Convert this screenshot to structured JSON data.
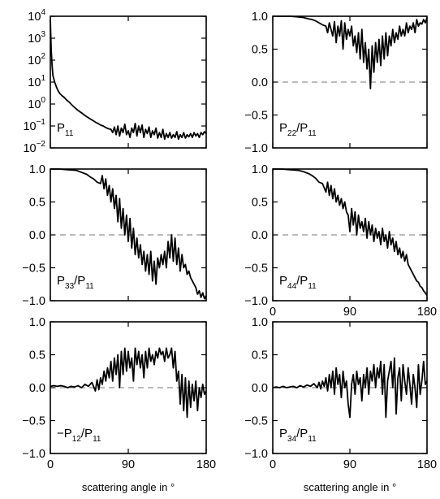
{
  "chart_data": [
    {
      "type": "line",
      "id": "P11",
      "panel_label": "P",
      "panel_label_parts": [
        "P",
        "11"
      ],
      "y_scale": "log",
      "ylim": [
        0.01,
        10000
      ],
      "yticks": [
        0.01,
        0.1,
        1,
        10,
        100,
        1000,
        10000
      ],
      "ytick_labels": [
        [
          "10",
          "−2"
        ],
        [
          "10",
          "−1"
        ],
        [
          "10",
          "0"
        ],
        [
          "10",
          "1"
        ],
        [
          "10",
          "2"
        ],
        [
          "10",
          "3"
        ],
        [
          "10",
          "4"
        ]
      ],
      "xlim": [
        0,
        180
      ],
      "xticks": [
        0,
        90,
        180
      ],
      "xtick_labels": [
        "",
        "",
        ""
      ],
      "xlabel": "",
      "zero_line": false,
      "x": [
        0,
        1,
        2,
        3,
        5,
        7,
        9,
        11,
        13,
        16,
        19,
        22,
        25,
        28,
        31,
        34,
        37,
        40,
        43,
        46,
        49,
        52,
        55,
        58,
        61,
        64,
        67,
        70,
        72,
        74,
        76,
        78,
        80,
        82,
        84,
        86,
        88,
        90,
        92,
        94,
        96,
        98,
        100,
        102,
        104,
        106,
        108,
        110,
        112,
        114,
        116,
        118,
        120,
        122,
        124,
        126,
        128,
        130,
        132,
        134,
        136,
        138,
        140,
        142,
        144,
        146,
        148,
        150,
        152,
        154,
        156,
        158,
        160,
        162,
        164,
        166,
        168,
        170,
        172,
        174,
        176,
        178,
        180
      ],
      "y": [
        7000,
        300,
        60,
        20,
        10,
        6,
        4,
        3,
        2.5,
        2,
        1.5,
        1.2,
        0.9,
        0.7,
        0.55,
        0.45,
        0.37,
        0.3,
        0.25,
        0.21,
        0.18,
        0.15,
        0.13,
        0.11,
        0.1,
        0.085,
        0.075,
        0.07,
        0.05,
        0.09,
        0.04,
        0.1,
        0.035,
        0.08,
        0.05,
        0.12,
        0.04,
        0.06,
        0.03,
        0.08,
        0.05,
        0.13,
        0.035,
        0.1,
        0.05,
        0.11,
        0.03,
        0.07,
        0.045,
        0.09,
        0.03,
        0.06,
        0.04,
        0.08,
        0.028,
        0.05,
        0.03,
        0.07,
        0.025,
        0.045,
        0.03,
        0.05,
        0.028,
        0.04,
        0.03,
        0.055,
        0.025,
        0.04,
        0.03,
        0.05,
        0.028,
        0.04,
        0.032,
        0.045,
        0.03,
        0.05,
        0.035,
        0.045,
        0.03,
        0.05,
        0.04,
        0.055,
        0.045
      ]
    },
    {
      "type": "line",
      "id": "P22/P11",
      "panel_label_parts": [
        "P",
        "22",
        "/P",
        "11"
      ],
      "y_scale": "linear",
      "ylim": [
        -1,
        1
      ],
      "yticks": [
        -1,
        -0.5,
        0,
        0.5,
        1
      ],
      "ytick_labels": [
        "−1.0",
        "−0.5",
        "0.0",
        "0.5",
        "1.0"
      ],
      "xlim": [
        0,
        180
      ],
      "xticks": [
        0,
        90,
        180
      ],
      "xtick_labels": [
        "",
        "",
        ""
      ],
      "xlabel": "",
      "zero_line": true,
      "x": [
        0,
        10,
        20,
        30,
        36,
        42,
        46,
        50,
        54,
        58,
        62,
        64,
        66,
        68,
        70,
        72,
        74,
        76,
        78,
        80,
        82,
        84,
        86,
        88,
        90,
        92,
        94,
        96,
        98,
        100,
        102,
        104,
        106,
        108,
        110,
        112,
        114,
        116,
        118,
        120,
        122,
        124,
        126,
        128,
        130,
        132,
        134,
        136,
        138,
        140,
        142,
        144,
        146,
        148,
        150,
        152,
        154,
        156,
        158,
        160,
        162,
        164,
        166,
        168,
        170,
        172,
        174,
        176,
        178,
        180
      ],
      "y": [
        1.0,
        1.0,
        1.0,
        0.99,
        0.98,
        0.96,
        0.95,
        0.93,
        0.9,
        0.87,
        0.85,
        0.75,
        0.9,
        0.8,
        0.7,
        0.92,
        0.6,
        0.85,
        0.7,
        0.93,
        0.5,
        0.9,
        0.65,
        0.8,
        0.7,
        0.85,
        0.55,
        0.7,
        0.45,
        0.75,
        0.35,
        0.8,
        0.3,
        0.6,
        0.2,
        0.5,
        -0.1,
        0.55,
        0.15,
        0.6,
        0.3,
        0.65,
        0.25,
        0.7,
        0.35,
        0.75,
        0.4,
        0.7,
        0.55,
        0.8,
        0.6,
        0.75,
        0.65,
        0.85,
        0.7,
        0.8,
        0.7,
        0.9,
        0.75,
        0.85,
        0.8,
        0.9,
        0.75,
        0.95,
        0.85,
        0.9,
        0.88,
        0.95,
        0.9,
        0.98
      ]
    },
    {
      "type": "line",
      "id": "P33/P11",
      "panel_label_parts": [
        "P",
        "33",
        "/P",
        "11"
      ],
      "y_scale": "linear",
      "ylim": [
        -1,
        1
      ],
      "yticks": [
        -1,
        -0.5,
        0,
        0.5,
        1
      ],
      "ytick_labels": [
        "−1.0",
        "−0.5",
        "0.0",
        "0.5",
        "1.0"
      ],
      "xlim": [
        0,
        180
      ],
      "xticks": [
        0,
        90,
        180
      ],
      "xtick_labels": [
        "",
        "",
        ""
      ],
      "xlabel": "",
      "zero_line": true,
      "x": [
        0,
        10,
        20,
        30,
        36,
        42,
        46,
        50,
        54,
        58,
        60,
        62,
        64,
        66,
        68,
        70,
        72,
        74,
        76,
        78,
        80,
        82,
        84,
        86,
        88,
        90,
        92,
        94,
        96,
        98,
        100,
        102,
        104,
        106,
        108,
        110,
        112,
        114,
        116,
        118,
        120,
        122,
        124,
        126,
        128,
        130,
        132,
        134,
        136,
        138,
        140,
        142,
        144,
        146,
        148,
        150,
        152,
        154,
        156,
        158,
        160,
        162,
        164,
        166,
        168,
        170,
        172,
        174,
        176,
        178,
        180
      ],
      "y": [
        1.0,
        1.0,
        0.99,
        0.98,
        0.95,
        0.92,
        0.88,
        0.85,
        0.8,
        0.78,
        0.9,
        0.7,
        0.85,
        0.6,
        0.75,
        0.5,
        0.7,
        0.4,
        0.6,
        0.2,
        0.55,
        0.1,
        0.4,
        0.0,
        0.3,
        -0.1,
        0.25,
        -0.2,
        0.1,
        -0.3,
        -0.05,
        -0.35,
        -0.15,
        -0.45,
        -0.25,
        -0.55,
        -0.3,
        -0.6,
        -0.25,
        -0.7,
        -0.4,
        -0.75,
        -0.35,
        -0.5,
        -0.3,
        -0.45,
        -0.25,
        -0.5,
        -0.1,
        -0.35,
        0.0,
        -0.4,
        -0.05,
        -0.45,
        -0.2,
        -0.55,
        -0.3,
        -0.5,
        -0.45,
        -0.6,
        -0.55,
        -0.65,
        -0.7,
        -0.75,
        -0.8,
        -0.9,
        -0.85,
        -0.95,
        -0.88,
        -0.97,
        -0.92
      ]
    },
    {
      "type": "line",
      "id": "P44/P11",
      "panel_label_parts": [
        "P",
        "44",
        "/P",
        "11"
      ],
      "y_scale": "linear",
      "ylim": [
        -1,
        1
      ],
      "yticks": [
        -1,
        -0.5,
        0,
        0.5,
        1
      ],
      "ytick_labels": [
        "−1.0",
        "−0.5",
        "0.0",
        "0.5",
        "1.0"
      ],
      "xlim": [
        0,
        180
      ],
      "xticks": [
        0,
        90,
        180
      ],
      "xtick_labels": [
        "0",
        "90",
        "180"
      ],
      "xlabel": "",
      "zero_line": true,
      "x": [
        0,
        10,
        20,
        30,
        36,
        42,
        46,
        50,
        54,
        58,
        62,
        64,
        66,
        68,
        70,
        72,
        74,
        76,
        78,
        80,
        82,
        84,
        86,
        88,
        90,
        92,
        94,
        96,
        98,
        100,
        102,
        104,
        106,
        108,
        110,
        112,
        114,
        116,
        118,
        120,
        122,
        124,
        126,
        128,
        130,
        132,
        134,
        136,
        138,
        140,
        142,
        144,
        146,
        148,
        150,
        152,
        154,
        156,
        158,
        160,
        162,
        164,
        166,
        168,
        170,
        172,
        174,
        176,
        178,
        180
      ],
      "y": [
        1.0,
        1.0,
        0.99,
        0.98,
        0.96,
        0.93,
        0.9,
        0.86,
        0.8,
        0.78,
        0.65,
        0.8,
        0.6,
        0.75,
        0.55,
        0.7,
        0.5,
        0.6,
        0.45,
        0.55,
        0.4,
        0.5,
        0.35,
        0.3,
        0.05,
        0.4,
        0.15,
        0.35,
        0.0,
        0.3,
        0.1,
        0.2,
        0.05,
        0.25,
        -0.05,
        0.2,
        0.0,
        0.15,
        -0.1,
        0.1,
        -0.05,
        0.05,
        -0.15,
        0.1,
        -0.1,
        0.0,
        -0.2,
        0.05,
        -0.15,
        -0.05,
        -0.25,
        -0.1,
        -0.3,
        -0.2,
        -0.35,
        -0.25,
        -0.4,
        -0.3,
        -0.45,
        -0.5,
        -0.55,
        -0.6,
        -0.65,
        -0.7,
        -0.72,
        -0.78,
        -0.8,
        -0.85,
        -0.88,
        -0.92
      ]
    },
    {
      "type": "line",
      "id": "-P12/P11",
      "panel_label_parts": [
        "−P",
        "12",
        "/P",
        "11"
      ],
      "y_scale": "linear",
      "ylim": [
        -1,
        1
      ],
      "yticks": [
        -1,
        -0.5,
        0,
        0.5,
        1
      ],
      "ytick_labels": [
        "−1.0",
        "−0.5",
        "0.0",
        "0.5",
        "1.0"
      ],
      "xlim": [
        0,
        180
      ],
      "xticks": [
        0,
        90,
        180
      ],
      "xtick_labels": [
        "0",
        "90",
        "180"
      ],
      "xlabel": "scattering angle in °",
      "zero_line": true,
      "x": [
        0,
        4,
        8,
        12,
        16,
        20,
        24,
        28,
        32,
        36,
        40,
        44,
        48,
        52,
        54,
        56,
        58,
        60,
        62,
        64,
        66,
        68,
        70,
        72,
        74,
        76,
        78,
        80,
        82,
        84,
        86,
        88,
        90,
        92,
        94,
        96,
        98,
        100,
        102,
        104,
        106,
        108,
        110,
        112,
        114,
        116,
        118,
        120,
        122,
        124,
        126,
        128,
        130,
        132,
        134,
        136,
        138,
        140,
        142,
        144,
        146,
        148,
        150,
        152,
        154,
        156,
        158,
        160,
        162,
        164,
        166,
        168,
        170,
        172,
        174,
        176,
        178,
        180
      ],
      "y": [
        0.02,
        0.03,
        0.02,
        0.03,
        0.02,
        0.0,
        0.02,
        0.01,
        0.03,
        0.0,
        0.05,
        0.02,
        0.08,
        -0.05,
        0.12,
        -0.03,
        0.15,
        0.05,
        0.25,
        0.1,
        0.3,
        0.15,
        0.4,
        0.1,
        0.45,
        0.2,
        0.5,
        0.0,
        0.55,
        0.2,
        0.6,
        0.25,
        0.55,
        0.3,
        0.45,
        0.1,
        0.6,
        0.35,
        0.55,
        0.3,
        0.5,
        0.15,
        0.55,
        0.3,
        0.6,
        0.4,
        0.5,
        0.35,
        0.55,
        0.45,
        0.6,
        0.5,
        0.55,
        0.4,
        0.6,
        0.45,
        0.5,
        0.6,
        0.3,
        0.55,
        0.1,
        0.25,
        -0.25,
        0.2,
        -0.35,
        0.15,
        -0.45,
        0.1,
        -0.3,
        0.05,
        -0.2,
        0.1,
        -0.35,
        0.0,
        -0.15,
        0.05,
        -0.1,
        -0.05
      ]
    },
    {
      "type": "line",
      "id": "P34/P11",
      "panel_label_parts": [
        "P",
        "34",
        "/P",
        "11"
      ],
      "y_scale": "linear",
      "ylim": [
        -1,
        1
      ],
      "yticks": [
        -1,
        -0.5,
        0,
        0.5,
        1
      ],
      "ytick_labels": [
        "−1.0",
        "−0.5",
        "0.0",
        "0.5",
        "1.0"
      ],
      "xlim": [
        0,
        180
      ],
      "xticks": [
        0,
        90,
        180
      ],
      "xtick_labels": [
        "0",
        "90",
        "180"
      ],
      "xlabel": "scattering angle in °",
      "zero_line": true,
      "x": [
        0,
        4,
        8,
        12,
        16,
        20,
        24,
        28,
        32,
        36,
        40,
        44,
        48,
        52,
        54,
        56,
        58,
        60,
        62,
        64,
        66,
        68,
        70,
        72,
        74,
        76,
        78,
        80,
        82,
        84,
        86,
        88,
        90,
        92,
        94,
        96,
        98,
        100,
        102,
        104,
        106,
        108,
        110,
        112,
        114,
        116,
        118,
        120,
        122,
        124,
        126,
        128,
        130,
        132,
        134,
        136,
        138,
        140,
        142,
        144,
        146,
        148,
        150,
        152,
        154,
        156,
        158,
        160,
        162,
        164,
        166,
        168,
        170,
        172,
        174,
        176,
        178,
        180
      ],
      "y": [
        0.0,
        0.01,
        0.0,
        0.02,
        0.0,
        0.01,
        0.02,
        0.0,
        0.03,
        0.01,
        0.04,
        0.02,
        0.06,
        0.0,
        0.08,
        -0.02,
        0.1,
        0.02,
        0.15,
        -0.05,
        0.2,
        0.0,
        0.25,
        -0.1,
        0.3,
        0.05,
        0.2,
        -0.15,
        0.25,
        0.0,
        0.1,
        -0.25,
        -0.45,
        0.05,
        0.2,
        -0.1,
        0.25,
        0.05,
        0.15,
        -0.2,
        0.2,
        0.0,
        0.3,
        -0.1,
        0.25,
        0.1,
        0.35,
        0.0,
        0.3,
        0.15,
        0.4,
        -0.1,
        0.35,
        -0.45,
        0.1,
        0.25,
        0.4,
        0.0,
        0.45,
        -0.4,
        0.15,
        0.3,
        -0.2,
        0.35,
        0.1,
        -0.1,
        0.3,
        0.05,
        -0.25,
        0.2,
        0.0,
        -0.3,
        0.35,
        -0.1,
        0.1,
        0.4,
        0.05,
        0.1
      ]
    }
  ]
}
